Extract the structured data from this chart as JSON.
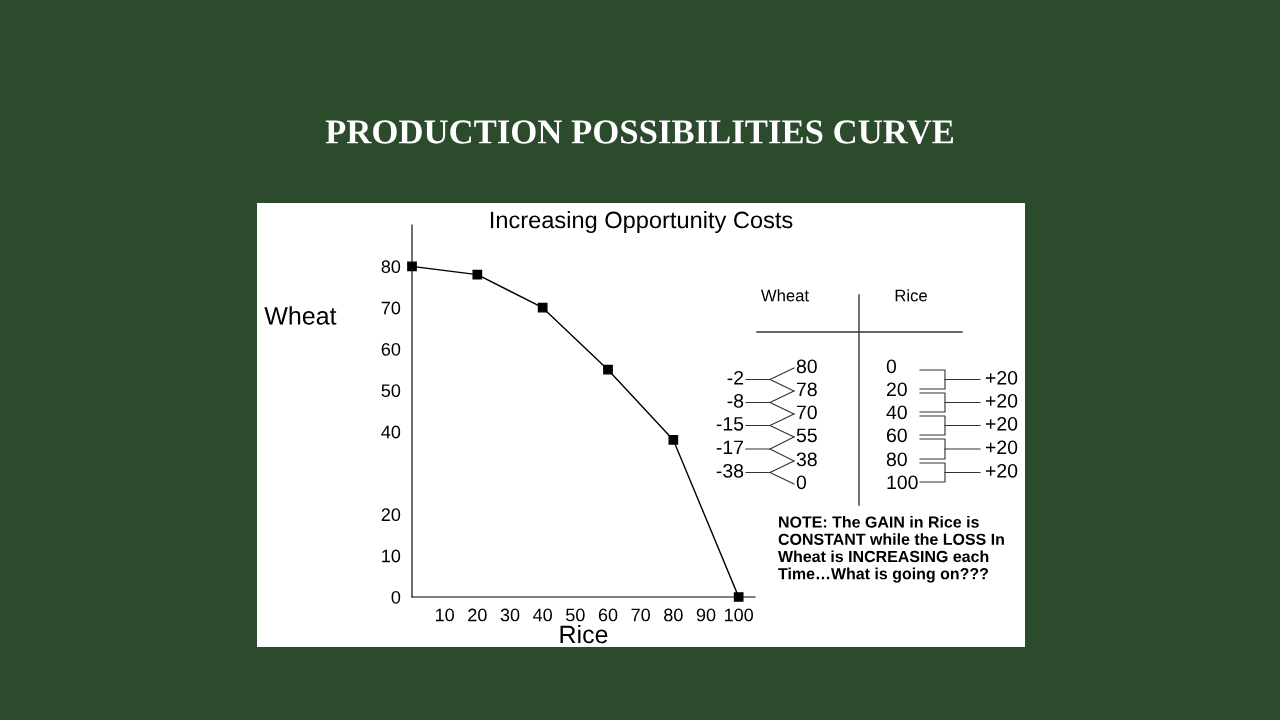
{
  "chart_data": {
    "type": "line",
    "title": "PRODUCTION POSSIBILITIES CURVE",
    "subtitle": "Increasing Opportunity Costs",
    "xlabel": "Rice",
    "ylabel": "Wheat",
    "x": [
      0,
      20,
      40,
      60,
      80,
      100
    ],
    "series": [
      {
        "color": "#000000",
        "values": [
          80,
          78,
          70,
          55,
          38,
          0
        ]
      }
    ],
    "marker": "square",
    "line_style": "solid",
    "grid": false,
    "xlim": [
      0,
      105
    ],
    "xticks": [
      10,
      20,
      30,
      40,
      50,
      60,
      70,
      80,
      90,
      100
    ],
    "ylim": [
      0,
      90
    ],
    "yticks": [
      0,
      10,
      20,
      40,
      50,
      60,
      70,
      80
    ],
    "annotations": [
      "Wheat",
      "Rice",
      "-2",
      "-8",
      "-15",
      "-17",
      "-38",
      "+20",
      "+20",
      "+20",
      "+20",
      "+20",
      "NOTE: The GAIN in Rice is CONSTANT while the LOSS In Wheat is INCREASING each Time…What is going on???",
      "80",
      "78",
      "70",
      "55",
      "38",
      "0",
      "0",
      "20",
      "40",
      "60",
      "80",
      "100"
    ]
  }
}
